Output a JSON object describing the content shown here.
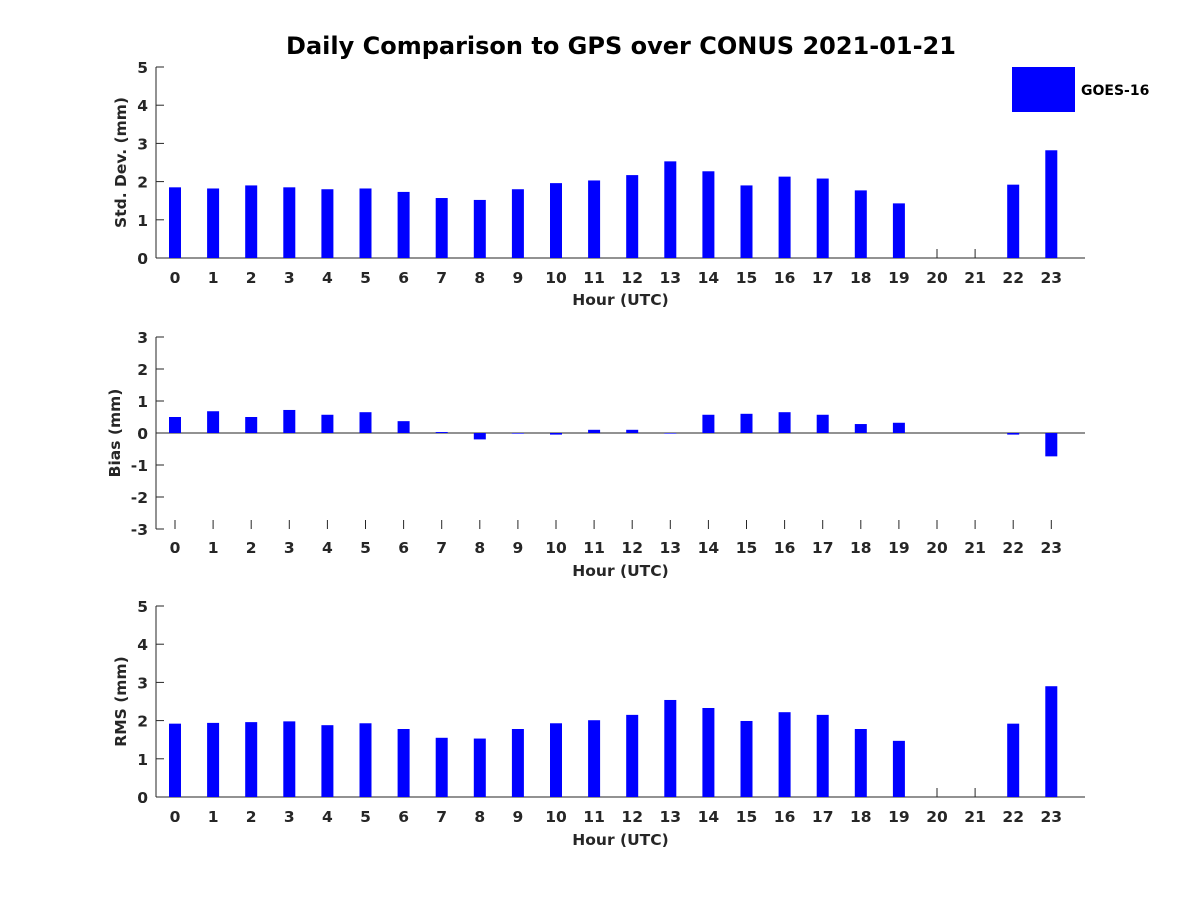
{
  "chart_data": {
    "title": "Daily Comparison to GPS over CONUS 2021-01-21",
    "colors": {
      "bar": "#0000ff",
      "axis": "#262626"
    },
    "legend": {
      "entries": [
        "GOES-16"
      ],
      "placement": "top-right"
    },
    "categories": [
      "0",
      "1",
      "2",
      "3",
      "4",
      "5",
      "6",
      "7",
      "8",
      "9",
      "10",
      "11",
      "12",
      "13",
      "14",
      "15",
      "16",
      "17",
      "18",
      "19",
      "20",
      "21",
      "22",
      "23"
    ],
    "panels": [
      {
        "type": "bar",
        "xlabel": "Hour (UTC)",
        "ylabel": "Std. Dev. (mm)",
        "ylim": [
          0,
          5
        ],
        "yticks": [
          "0",
          "1",
          "2",
          "3",
          "4",
          "5"
        ],
        "series": [
          {
            "name": "GOES-16",
            "values": [
              1.85,
              1.82,
              1.9,
              1.85,
              1.8,
              1.82,
              1.73,
              1.57,
              1.52,
              1.8,
              1.96,
              2.03,
              2.17,
              2.53,
              2.27,
              1.9,
              2.13,
              2.08,
              1.77,
              1.43,
              null,
              null,
              1.92,
              2.82
            ]
          }
        ]
      },
      {
        "type": "bar",
        "xlabel": "Hour (UTC)",
        "ylabel": "Bias (mm)",
        "ylim": [
          -3,
          3
        ],
        "yticks": [
          "-3",
          "-2",
          "-1",
          "0",
          "1",
          "2",
          "3"
        ],
        "series": [
          {
            "name": "GOES-16",
            "values": [
              0.5,
              0.68,
              0.5,
              0.72,
              0.57,
              0.65,
              0.37,
              0.03,
              -0.2,
              -0.02,
              -0.05,
              0.1,
              0.1,
              0.0,
              0.57,
              0.6,
              0.65,
              0.57,
              0.28,
              0.32,
              null,
              null,
              -0.05,
              -0.73
            ]
          }
        ]
      },
      {
        "type": "bar",
        "xlabel": "Hour (UTC)",
        "ylabel": "RMS (mm)",
        "ylim": [
          0,
          5
        ],
        "yticks": [
          "0",
          "1",
          "2",
          "3",
          "4",
          "5"
        ],
        "series": [
          {
            "name": "GOES-16",
            "values": [
              1.92,
              1.94,
              1.96,
              1.98,
              1.88,
              1.93,
              1.78,
              1.55,
              1.53,
              1.78,
              1.93,
              2.01,
              2.15,
              2.54,
              2.33,
              1.99,
              2.22,
              2.15,
              1.78,
              1.47,
              null,
              null,
              1.92,
              2.9
            ]
          }
        ]
      }
    ]
  }
}
